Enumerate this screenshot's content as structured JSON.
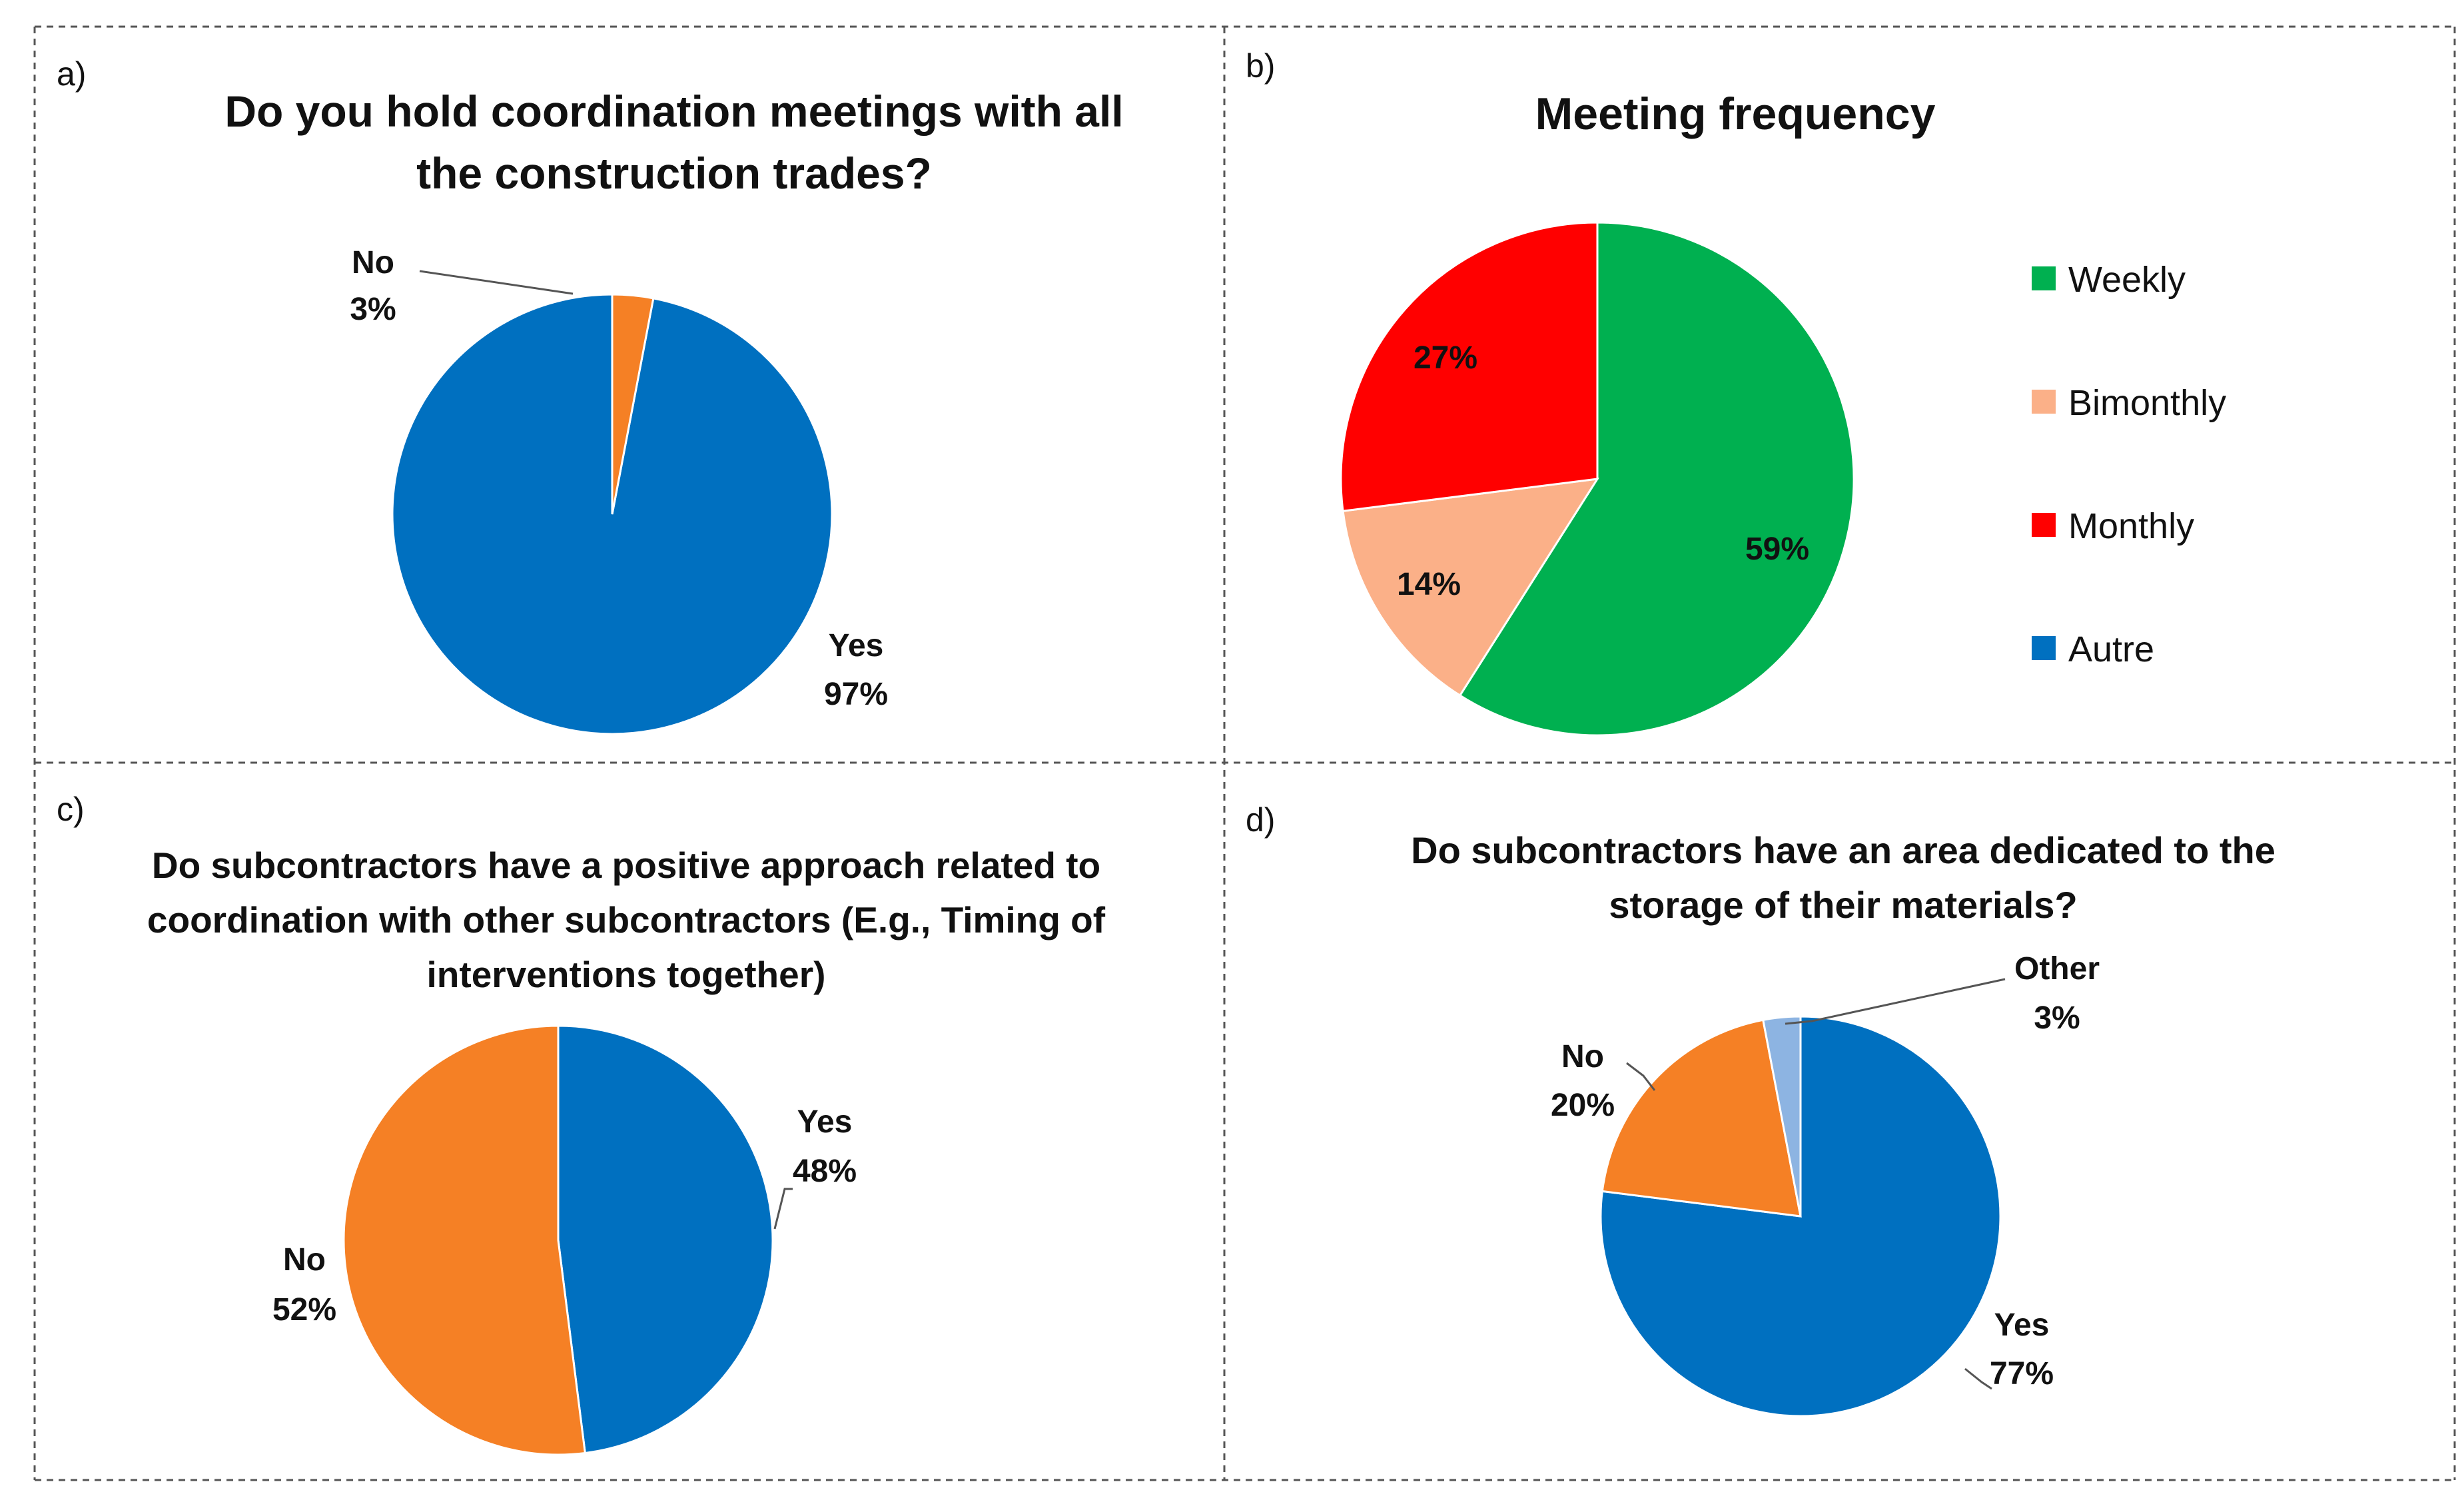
{
  "chart_data": [
    {
      "panel": "a)",
      "type": "pie",
      "title": [
        "Do you hold coordination meetings with all",
        "the construction trades?"
      ],
      "slices": [
        {
          "label": "Yes",
          "value": 97,
          "value_label": "97%",
          "color": "#0070C0"
        },
        {
          "label": "No",
          "value": 3,
          "value_label": "3%",
          "color": "#F58025"
        }
      ],
      "legend": "none"
    },
    {
      "panel": "b)",
      "type": "pie",
      "title": [
        "Meeting frequency"
      ],
      "slices": [
        {
          "label": "Weekly",
          "value": 59,
          "value_label": "59%",
          "color": "#00B050"
        },
        {
          "label": "Bimonthly",
          "value": 14,
          "value_label": "14%",
          "color": "#FBB088"
        },
        {
          "label": "Monthly",
          "value": 27,
          "value_label": "27%",
          "color": "#FF0000"
        },
        {
          "label": "Autre",
          "value": 0,
          "value_label": "",
          "color": "#0070C0"
        }
      ],
      "legend": "right"
    },
    {
      "panel": "c)",
      "type": "pie",
      "title": [
        "Do subcontractors have a positive approach related to",
        "coordination with other subcontractors (E.g., Timing of",
        "interventions together)"
      ],
      "slices": [
        {
          "label": "Yes",
          "value": 48,
          "value_label": "48%",
          "color": "#0070C0"
        },
        {
          "label": "No",
          "value": 52,
          "value_label": "52%",
          "color": "#F58025"
        }
      ],
      "legend": "none"
    },
    {
      "panel": "d)",
      "type": "pie",
      "title": [
        "Do subcontractors have an area dedicated to the",
        "storage of their materials?"
      ],
      "slices": [
        {
          "label": "Yes",
          "value": 77,
          "value_label": "77%",
          "color": "#0070C0"
        },
        {
          "label": "No",
          "value": 20,
          "value_label": "20%",
          "color": "#F58025"
        },
        {
          "label": "Other",
          "value": 3,
          "value_label": "3%",
          "color": "#8DB4E2"
        }
      ],
      "legend": "none"
    }
  ]
}
